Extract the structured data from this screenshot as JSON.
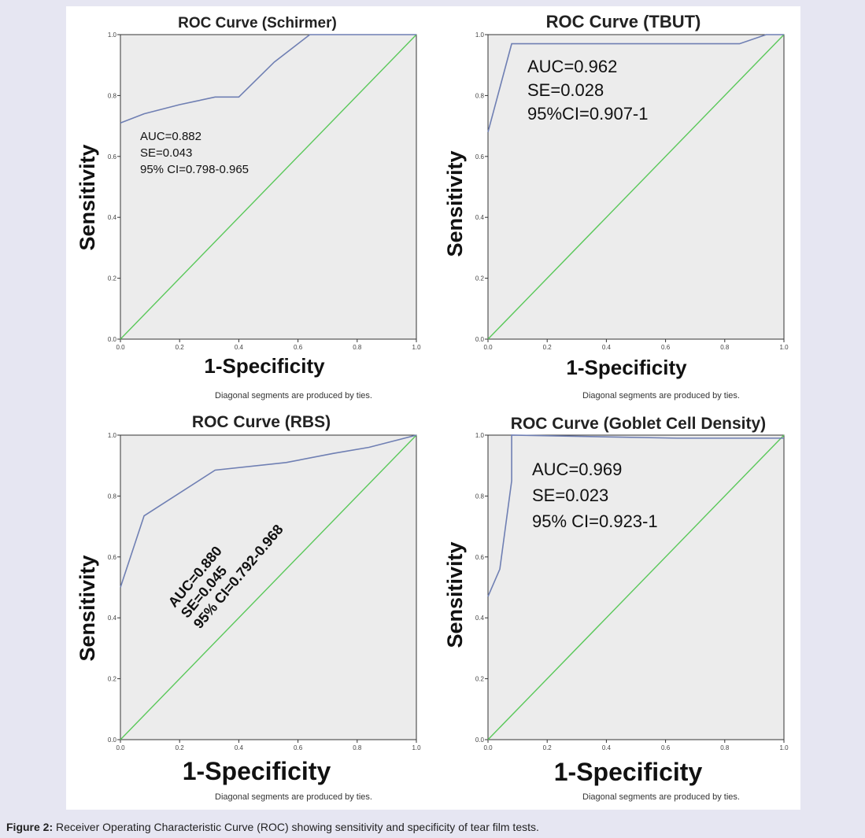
{
  "caption": {
    "label": "Figure 2:",
    "text": " Receiver Operating Characteristic Curve (ROC) showing sensitivity and specificity of tear film tests."
  },
  "colors": {
    "plot_bg": "#ececec",
    "roc_line": "#6f7fb3",
    "reference_line": "#5ac85a",
    "axis": "#333333"
  },
  "chart_data": [
    {
      "type": "line",
      "title": "ROC Curve (Schirmer)",
      "xlabel": "1-Specificity",
      "ylabel": "Sensitivity",
      "xlim": [
        0,
        1
      ],
      "ylim": [
        0,
        1
      ],
      "ticks": [
        "0.0",
        "0.2",
        "0.4",
        "0.6",
        "0.8",
        "1.0"
      ],
      "footnote": "Diagonal segments are produced by ties.",
      "annotation": [
        "AUC=0.882",
        "SE=0.043",
        "95% CI=0.798-0.965"
      ],
      "series": [
        {
          "x": [
            0,
            0.08,
            0.2,
            0.32,
            0.4,
            0.52,
            0.64,
            1.0
          ],
          "y": [
            0.71,
            0.74,
            0.77,
            0.795,
            0.795,
            0.91,
            1.0,
            1.0
          ]
        },
        {
          "x": [
            0,
            1
          ],
          "y": [
            0,
            1
          ]
        }
      ]
    },
    {
      "type": "line",
      "title": "ROC Curve (TBUT)",
      "xlabel": "1-Specificity",
      "ylabel": "Sensitivity",
      "xlim": [
        0,
        1
      ],
      "ylim": [
        0,
        1
      ],
      "ticks": [
        "0.0",
        "0.2",
        "0.4",
        "0.6",
        "0.8",
        "1.0"
      ],
      "footnote": "Diagonal segments are produced by ties.",
      "annotation": [
        "AUC=0.962",
        "SE=0.028",
        "95%CI=0.907-1"
      ],
      "series": [
        {
          "x": [
            0,
            0.08,
            0.85,
            0.94,
            1.0
          ],
          "y": [
            0.68,
            0.97,
            0.97,
            1.0,
            1.0
          ]
        },
        {
          "x": [
            0,
            1
          ],
          "y": [
            0,
            1
          ]
        }
      ]
    },
    {
      "type": "line",
      "title": "ROC Curve (RBS)",
      "xlabel": "1-Specificity",
      "ylabel": "Sensitivity",
      "xlim": [
        0,
        1
      ],
      "ylim": [
        0,
        1
      ],
      "ticks": [
        "0.0",
        "0.2",
        "0.4",
        "0.6",
        "0.8",
        "1.0"
      ],
      "footnote": "Diagonal segments are produced by ties.",
      "annotation": [
        "AUC=0.880",
        "SE=0.045",
        "95% CI=0.792-0.968"
      ],
      "series": [
        {
          "x": [
            0,
            0.08,
            0.32,
            0.56,
            0.72,
            0.84,
            0.92,
            1.0
          ],
          "y": [
            0.5,
            0.735,
            0.885,
            0.91,
            0.94,
            0.96,
            0.98,
            1.0
          ]
        },
        {
          "x": [
            0,
            1
          ],
          "y": [
            0,
            1
          ]
        }
      ]
    },
    {
      "type": "line",
      "title": "ROC Curve (Goblet Cell Density)",
      "xlabel": "1-Specificity",
      "ylabel": "Sensitivity",
      "xlim": [
        0,
        1
      ],
      "ylim": [
        0,
        1
      ],
      "ticks": [
        "0.0",
        "0.2",
        "0.4",
        "0.6",
        "0.8",
        "1.0"
      ],
      "footnote": "Diagonal segments are produced by ties.",
      "annotation": [
        "AUC=0.969",
        "SE=0.023",
        "95% CI=0.923-1"
      ],
      "series": [
        {
          "x": [
            0,
            0.04,
            0.08,
            0.08,
            0.64,
            1.0
          ],
          "y": [
            0.47,
            0.56,
            0.85,
            1.0,
            0.99,
            0.99
          ]
        },
        {
          "x": [
            0,
            1
          ],
          "y": [
            0,
            1
          ]
        }
      ]
    }
  ]
}
